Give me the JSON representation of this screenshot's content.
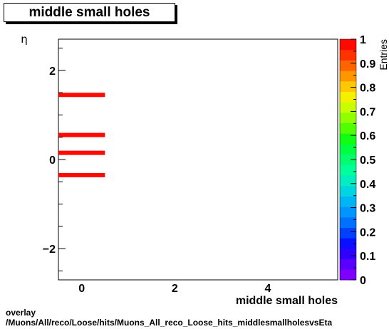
{
  "title": "middle small holes",
  "footer": {
    "line1": "overlay",
    "line2": "/Muons/All/reco/Loose/hits/Muons_All_reco_Loose_hits_middlesmallholesvsEta"
  },
  "chart_data": {
    "type": "heatmap",
    "title": "middle small holes",
    "xlabel": "middle small holes",
    "ylabel": "η",
    "zlabel": "Entries",
    "xlim": [
      -0.5,
      5.5
    ],
    "ylim": [
      -2.7,
      2.7
    ],
    "zlim": [
      0,
      1
    ],
    "x_ticks": [
      "0",
      "2",
      "4"
    ],
    "x_tick_values": [
      0,
      2,
      4
    ],
    "y_ticks": [
      "2",
      "0",
      "−2"
    ],
    "y_tick_values": [
      2,
      0,
      -2
    ],
    "z_ticks": [
      "0",
      "0.1",
      "0.2",
      "0.3",
      "0.4",
      "0.5",
      "0.6",
      "0.7",
      "0.8",
      "0.9",
      "1"
    ],
    "z_tick_values": [
      0,
      0.1,
      0.2,
      0.3,
      0.4,
      0.5,
      0.6,
      0.7,
      0.8,
      0.9,
      1
    ],
    "cells": [
      {
        "x0": -0.5,
        "x1": 0.5,
        "y": 1.45,
        "value": 1
      },
      {
        "x0": -0.5,
        "x1": 0.5,
        "y": 0.55,
        "value": 1
      },
      {
        "x0": -0.5,
        "x1": 0.5,
        "y": 0.15,
        "value": 1
      },
      {
        "x0": -0.5,
        "x1": 0.5,
        "y": -0.35,
        "value": 1
      }
    ],
    "palette": [
      "#7f00ff",
      "#5a00ff",
      "#2f00ff",
      "#0a10ff",
      "#0040ff",
      "#0070ff",
      "#0095ff",
      "#00b5f5",
      "#00d5e0",
      "#00eec0",
      "#00ff9a",
      "#00ff70",
      "#00ff40",
      "#10ff10",
      "#50ff00",
      "#90ff00",
      "#c8ff00",
      "#f5f000",
      "#ffc800",
      "#ff9600",
      "#ff6400",
      "#ff3200",
      "#ff0a00"
    ]
  }
}
